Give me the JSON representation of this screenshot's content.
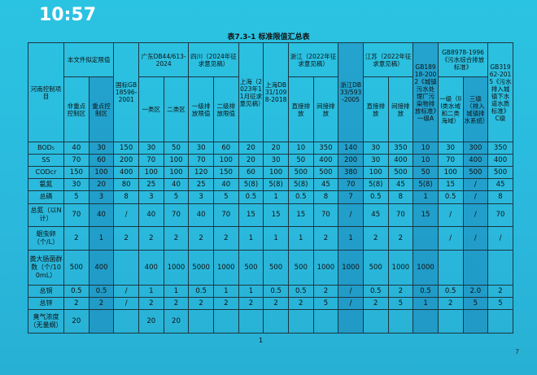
{
  "time": "10:57",
  "header": {
    "title": "表7.3-1  标准限值汇总表"
  },
  "corner_label": "河南控制项目",
  "columns": [
    {
      "title": "本文件拟定限值",
      "subs": [
        "非重点控制区",
        "重点控制区"
      ]
    },
    {
      "title": "国标GB18596-2001"
    },
    {
      "title": "广东DB44/613-2024",
      "subs": [
        "一类区",
        "二类区"
      ]
    },
    {
      "title": "四川（2024年征求意见稿）",
      "subs": [
        "一级排放限值",
        "二级排放限值"
      ]
    },
    {
      "title": "上海（2023年11月征求意见稿）"
    },
    {
      "title": "上海DB31/1098-2018"
    },
    {
      "title": "浙江（2022年征求意见稿）",
      "subs": [
        "直接排放",
        "间接排放"
      ]
    },
    {
      "title": "浙江DB33/593-2005"
    },
    {
      "title": "江苏（2022年征求意见稿）",
      "subs": [
        "直接排放",
        "间接排放"
      ]
    },
    {
      "title": "GB18918-2002《城镇污水处理厂污染物排放标准》一级A"
    },
    {
      "title": "GB8978-1996《污水综合排放标准》",
      "subs": [
        "一级（III类水域和二类海域）",
        "三级（排入城镇排水系统）"
      ]
    },
    {
      "title": "GB31962-2015《污水排入城镇下水道水质标准》C级"
    }
  ],
  "rows": [
    {
      "label": "BOD₅",
      "cells": [
        "40",
        "30",
        "150",
        "30",
        "50",
        "30",
        "60",
        "20",
        "20",
        "10",
        "350",
        "140",
        "30",
        "350",
        "10",
        "30",
        "300",
        "350"
      ]
    },
    {
      "label": "SS",
      "cells": [
        "70",
        "60",
        "200",
        "70",
        "100",
        "70",
        "100",
        "20",
        "30",
        "50",
        "400",
        "200",
        "30",
        "400",
        "10",
        "70",
        "400",
        "400"
      ]
    },
    {
      "label": "CODcr",
      "cells": [
        "150",
        "100",
        "400",
        "100",
        "100",
        "120",
        "150",
        "60",
        "100",
        "500",
        "500",
        "380",
        "100",
        "500",
        "50",
        "100",
        "500",
        "500"
      ]
    },
    {
      "label": "氨氮",
      "cells": [
        "30",
        "20",
        "80",
        "25",
        "40",
        "25",
        "40",
        "5(8)",
        "5(8)",
        "5(8)",
        "45",
        "70",
        "5(8)",
        "45",
        "5(8)",
        "15",
        "/",
        "45"
      ]
    },
    {
      "label": "总磷",
      "cells": [
        "5",
        "3",
        "8",
        "3",
        "5",
        "3",
        "5",
        "0.5",
        "1",
        "0.5",
        "8",
        "7",
        "0.5",
        "8",
        "1",
        "0.5",
        "/",
        "8"
      ]
    },
    {
      "label": "总氮（以N计）",
      "cells": [
        "70",
        "40",
        "/",
        "40",
        "70",
        "40",
        "70",
        "15",
        "15",
        "15",
        "70",
        "/",
        "45",
        "70",
        "15",
        "/",
        "/",
        "70"
      ]
    },
    {
      "label": "蛔虫卵（个/L）",
      "cells": [
        "2",
        "1",
        "2",
        "2",
        "2",
        "2",
        "2",
        "1",
        "1",
        "1",
        "2",
        "1",
        "2",
        "2",
        null,
        "/",
        "/",
        "/"
      ]
    },
    {
      "label": "粪大肠菌群数（个/100mL）",
      "cells": [
        "500",
        "400",
        null,
        "400",
        "1000",
        "5000",
        "1000",
        "500",
        "500",
        "500",
        "1000",
        "1000",
        "500",
        "1000",
        "1000",
        null,
        null,
        null
      ]
    },
    {
      "label": "总铜",
      "cells": [
        "0.5",
        "0.5",
        "/",
        "1",
        "1",
        "0.5",
        "1",
        "1",
        "0.5",
        "0.5",
        "2",
        "/",
        "0.5",
        "2",
        "0.5",
        "0.5",
        "2.0",
        "2"
      ]
    },
    {
      "label": "总锌",
      "cells": [
        "2",
        "2",
        "/",
        "2",
        "2",
        "2",
        "2",
        "2",
        "2",
        "2",
        "5",
        "/",
        "2",
        "5",
        "1",
        "2",
        "5",
        "5"
      ]
    },
    {
      "label": "臭气浓度（无量纲）",
      "cells": [
        "20",
        null,
        null,
        "20",
        "20",
        null,
        null,
        null,
        null,
        null,
        null,
        null,
        null,
        null,
        null,
        null,
        null,
        null
      ]
    }
  ],
  "page_number": "1",
  "corner_number": "7"
}
